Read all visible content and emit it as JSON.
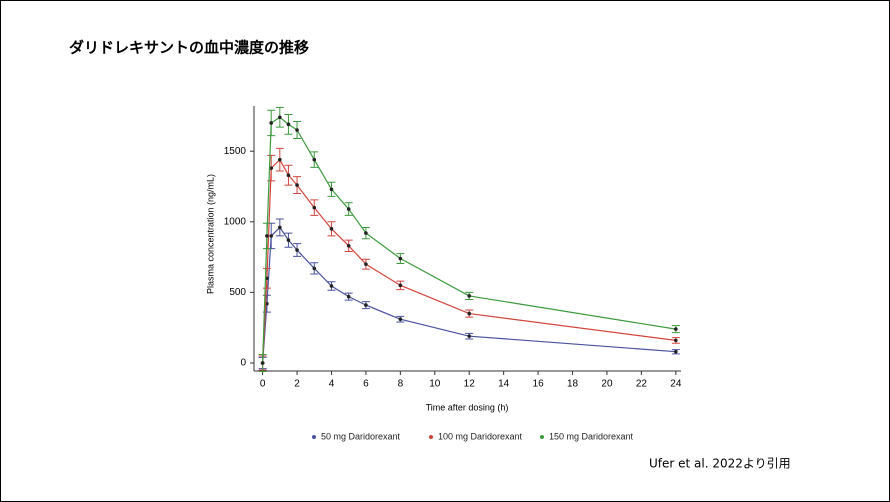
{
  "chart_data": {
    "type": "line",
    "title": "ダリドレキサントの血中濃度の推移",
    "x_label": "Time after dosing (h)",
    "y_label": "Plasma concentration (ng/mL)",
    "source": "Ufer et al. 2022より引用",
    "x": [
      0,
      0.25,
      0.5,
      1,
      1.5,
      2,
      3,
      4,
      5,
      6,
      8,
      12,
      24
    ],
    "series": [
      {
        "name": "50 mg Daridorexant",
        "color": "#4a519e",
        "values": [
          0,
          420,
          900,
          960,
          870,
          800,
          670,
          545,
          470,
          410,
          310,
          190,
          80
        ],
        "errors": [
          40,
          60,
          90,
          60,
          50,
          45,
          40,
          30,
          25,
          25,
          20,
          20,
          15
        ]
      },
      {
        "name": "100 mg Daridorexant",
        "color": "#d2453c",
        "values": [
          0,
          600,
          1380,
          1440,
          1330,
          1260,
          1100,
          950,
          830,
          700,
          550,
          350,
          160
        ],
        "errors": [
          50,
          70,
          90,
          80,
          70,
          60,
          55,
          50,
          40,
          35,
          30,
          25,
          20
        ]
      },
      {
        "name": "150 mg Daridorexant",
        "color": "#3c9a3c",
        "values": [
          0,
          900,
          1700,
          1740,
          1690,
          1650,
          1440,
          1230,
          1090,
          920,
          740,
          475,
          240
        ],
        "errors": [
          60,
          90,
          90,
          70,
          70,
          60,
          55,
          50,
          45,
          40,
          35,
          25,
          25
        ]
      }
    ],
    "xlim": [
      -0.5,
      24.3
    ],
    "ylim": [
      0,
      1820
    ],
    "xticks": [
      0,
      2,
      4,
      6,
      8,
      10,
      12,
      14,
      16,
      18,
      20,
      22,
      24
    ],
    "yticks": [
      0,
      500,
      1000,
      1500
    ],
    "legend": "bottom"
  }
}
